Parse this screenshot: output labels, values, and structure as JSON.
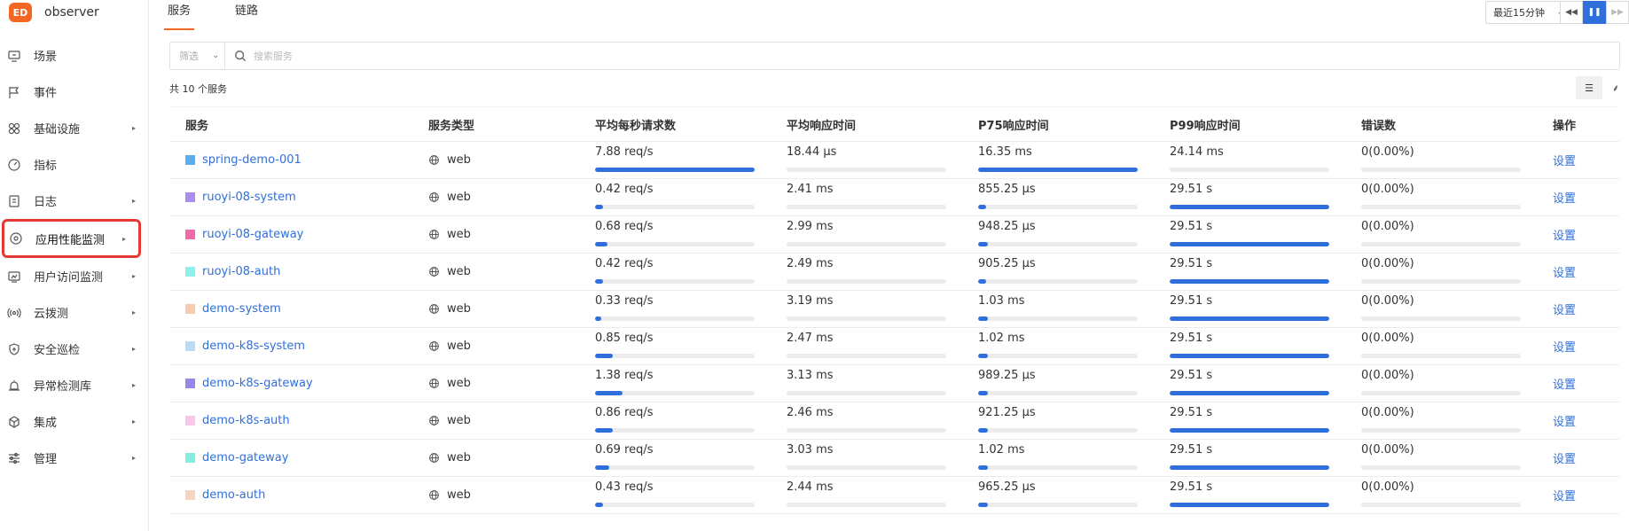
{
  "app": {
    "name": "observer",
    "logo_text": "ED"
  },
  "sidebar": {
    "items": [
      {
        "label": "场景",
        "icon": "monitor-icon",
        "arrow": false,
        "active": false
      },
      {
        "label": "事件",
        "icon": "flag-icon",
        "arrow": false,
        "active": false
      },
      {
        "label": "基础设施",
        "icon": "grid-icon",
        "arrow": true,
        "active": false
      },
      {
        "label": "指标",
        "icon": "gauge-icon",
        "arrow": false,
        "active": false
      },
      {
        "label": "日志",
        "icon": "log-icon",
        "arrow": true,
        "active": false
      },
      {
        "label": "应用性能监测",
        "icon": "apm-icon",
        "arrow": true,
        "active": true
      },
      {
        "label": "用户访问监测",
        "icon": "user-monitor-icon",
        "arrow": true,
        "active": false
      },
      {
        "label": "云拨测",
        "icon": "signal-icon",
        "arrow": true,
        "active": false
      },
      {
        "label": "安全巡检",
        "icon": "shield-icon",
        "arrow": true,
        "active": false
      },
      {
        "label": "异常检测库",
        "icon": "alarm-icon",
        "arrow": true,
        "active": false
      },
      {
        "label": "集成",
        "icon": "cube-icon",
        "arrow": true,
        "active": false
      },
      {
        "label": "管理",
        "icon": "sliders-icon",
        "arrow": true,
        "active": false
      }
    ]
  },
  "tabs": [
    {
      "label": "服务",
      "active": true
    },
    {
      "label": "链路",
      "active": false
    }
  ],
  "toolbar": {
    "time_range": "最近15分钟"
  },
  "filter": {
    "select_label": "筛选",
    "search_placeholder": "搜索服务"
  },
  "summary": {
    "count_text": "共 10 个服务"
  },
  "table": {
    "headers": [
      "服务",
      "服务类型",
      "平均每秒请求数",
      "平均响应时间",
      "P75响应时间",
      "P99响应时间",
      "错误数",
      "操作"
    ],
    "rows": [
      {
        "name": "spring-demo-001",
        "color": "#5aaef0",
        "type": "web",
        "rps": "7.88 req/s",
        "rps_pct": 100,
        "avg": "18.44 μs",
        "avg_pct": 0,
        "p75": "16.35 ms",
        "p75_pct": 100,
        "p99": "24.14 ms",
        "p99_pct": 0,
        "errors": "0(0.00%)",
        "action": "设置"
      },
      {
        "name": "ruoyi-08-system",
        "color": "#a98ef0",
        "type": "web",
        "rps": "0.42 req/s",
        "rps_pct": 5,
        "avg": "2.41 ms",
        "avg_pct": 0,
        "p75": "855.25 μs",
        "p75_pct": 5,
        "p99": "29.51 s",
        "p99_pct": 100,
        "errors": "0(0.00%)",
        "action": "设置"
      },
      {
        "name": "ruoyi-08-gateway",
        "color": "#f06aa8",
        "type": "web",
        "rps": "0.68 req/s",
        "rps_pct": 8,
        "avg": "2.99 ms",
        "avg_pct": 0,
        "p75": "948.25 μs",
        "p75_pct": 6,
        "p99": "29.51 s",
        "p99_pct": 100,
        "errors": "0(0.00%)",
        "action": "设置"
      },
      {
        "name": "ruoyi-08-auth",
        "color": "#8ef0ea",
        "type": "web",
        "rps": "0.42 req/s",
        "rps_pct": 5,
        "avg": "2.49 ms",
        "avg_pct": 0,
        "p75": "905.25 μs",
        "p75_pct": 5,
        "p99": "29.51 s",
        "p99_pct": 100,
        "errors": "0(0.00%)",
        "action": "设置"
      },
      {
        "name": "demo-system",
        "color": "#f8cbb0",
        "type": "web",
        "rps": "0.33 req/s",
        "rps_pct": 4,
        "avg": "3.19 ms",
        "avg_pct": 0,
        "p75": "1.03 ms",
        "p75_pct": 6,
        "p99": "29.51 s",
        "p99_pct": 100,
        "errors": "0(0.00%)",
        "action": "设置"
      },
      {
        "name": "demo-k8s-system",
        "color": "#b8dcf8",
        "type": "web",
        "rps": "0.85 req/s",
        "rps_pct": 11,
        "avg": "2.47 ms",
        "avg_pct": 0,
        "p75": "1.02 ms",
        "p75_pct": 6,
        "p99": "29.51 s",
        "p99_pct": 100,
        "errors": "0(0.00%)",
        "action": "设置"
      },
      {
        "name": "demo-k8s-gateway",
        "color": "#9a86e8",
        "type": "web",
        "rps": "1.38 req/s",
        "rps_pct": 17,
        "avg": "3.13 ms",
        "avg_pct": 0,
        "p75": "989.25 μs",
        "p75_pct": 6,
        "p99": "29.51 s",
        "p99_pct": 100,
        "errors": "0(0.00%)",
        "action": "设置"
      },
      {
        "name": "demo-k8s-auth",
        "color": "#f8c8e8",
        "type": "web",
        "rps": "0.86 req/s",
        "rps_pct": 11,
        "avg": "2.46 ms",
        "avg_pct": 0,
        "p75": "921.25 μs",
        "p75_pct": 6,
        "p99": "29.51 s",
        "p99_pct": 100,
        "errors": "0(0.00%)",
        "action": "设置"
      },
      {
        "name": "demo-gateway",
        "color": "#86ece0",
        "type": "web",
        "rps": "0.69 req/s",
        "rps_pct": 9,
        "avg": "3.03 ms",
        "avg_pct": 0,
        "p75": "1.02 ms",
        "p75_pct": 6,
        "p99": "29.51 s",
        "p99_pct": 100,
        "errors": "0(0.00%)",
        "action": "设置"
      },
      {
        "name": "demo-auth",
        "color": "#f8d4c0",
        "type": "web",
        "rps": "0.43 req/s",
        "rps_pct": 5,
        "avg": "2.44 ms",
        "avg_pct": 0,
        "p75": "965.25 μs",
        "p75_pct": 6,
        "p99": "29.51 s",
        "p99_pct": 100,
        "errors": "0(0.00%)",
        "action": "设置"
      }
    ]
  }
}
